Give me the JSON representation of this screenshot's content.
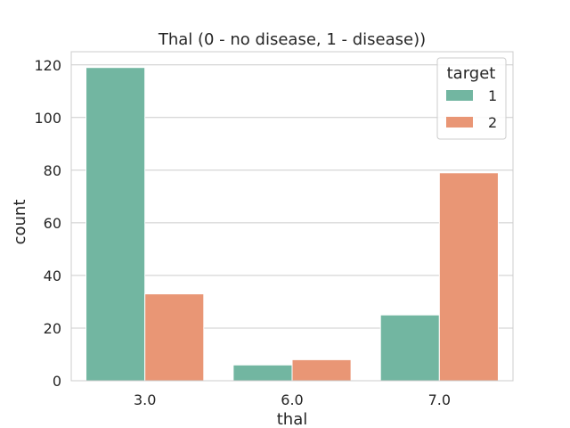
{
  "chart_data": {
    "type": "bar",
    "title": "Thal (0 - no disease, 1 - disease))",
    "xlabel": "thal",
    "ylabel": "count",
    "categories": [
      "3.0",
      "6.0",
      "7.0"
    ],
    "series": [
      {
        "name": "1",
        "values": [
          119,
          6,
          25
        ],
        "color": "#72b6a1"
      },
      {
        "name": "2",
        "values": [
          33,
          8,
          79
        ],
        "color": "#e99675"
      }
    ],
    "ylim": [
      0,
      125
    ],
    "yticks": [
      0,
      20,
      40,
      60,
      80,
      100,
      120
    ],
    "grid": "horizontal",
    "legend": {
      "title": "target",
      "placement": "top-right"
    }
  }
}
